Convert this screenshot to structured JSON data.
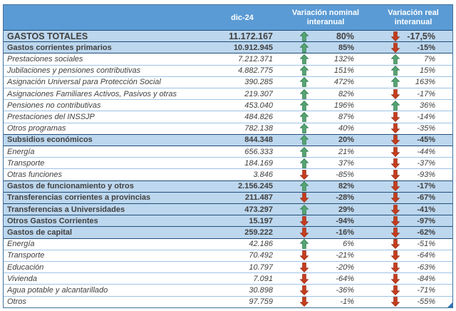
{
  "header": {
    "date_label": "dic-24",
    "nominal_label": "Variación nominal interanual",
    "real_label": "Variación real interanual"
  },
  "rows": [
    {
      "label": "GASTOS TOTALES",
      "value": "11.172.167",
      "nominal": "80%",
      "nominal_dir": "up",
      "real": "-17,5%",
      "real_dir": "down",
      "style": "total"
    },
    {
      "label": "Gastos corrientes primarios",
      "value": "10.912.945",
      "nominal": "85%",
      "nominal_dir": "up",
      "real": "-15%",
      "real_dir": "down",
      "style": "section"
    },
    {
      "label": "Prestaciones sociales",
      "value": "7.212.371",
      "nominal": "132%",
      "nominal_dir": "up",
      "real": "7%",
      "real_dir": "up",
      "style": "item"
    },
    {
      "label": "Jubilaciones y pensiones contributivas",
      "value": "4.882.775",
      "nominal": "151%",
      "nominal_dir": "up",
      "real": "15%",
      "real_dir": "up",
      "style": "item"
    },
    {
      "label": "Asignación Universal para Protección Social",
      "value": "390.285",
      "nominal": "472%",
      "nominal_dir": "up",
      "real": "163%",
      "real_dir": "up",
      "style": "item"
    },
    {
      "label": "Asignaciones Familiares Activos, Pasivos y otras",
      "value": "219.307",
      "nominal": "82%",
      "nominal_dir": "up",
      "real": "-17%",
      "real_dir": "down",
      "style": "item"
    },
    {
      "label": "Pensiones no contributivas",
      "value": "453.040",
      "nominal": "196%",
      "nominal_dir": "up",
      "real": "36%",
      "real_dir": "up",
      "style": "item"
    },
    {
      "label": "Prestaciones del INSSJP",
      "value": "484.826",
      "nominal": "87%",
      "nominal_dir": "up",
      "real": "-14%",
      "real_dir": "down",
      "style": "item"
    },
    {
      "label": "Otros programas",
      "value": "782.138",
      "nominal": "40%",
      "nominal_dir": "up",
      "real": "-35%",
      "real_dir": "down",
      "style": "item"
    },
    {
      "label": "Subsidios económicos",
      "value": "844.348",
      "nominal": "20%",
      "nominal_dir": "up",
      "real": "-45%",
      "real_dir": "down",
      "style": "section"
    },
    {
      "label": "Energía",
      "value": "656.333",
      "nominal": "21%",
      "nominal_dir": "up",
      "real": "-44%",
      "real_dir": "down",
      "style": "item"
    },
    {
      "label": "Transporte",
      "value": "184.169",
      "nominal": "37%",
      "nominal_dir": "up",
      "real": "-37%",
      "real_dir": "down",
      "style": "item"
    },
    {
      "label": "Otras funciones",
      "value": "3.846",
      "nominal": "-85%",
      "nominal_dir": "down",
      "real": "-93%",
      "real_dir": "down",
      "style": "item"
    },
    {
      "label": "Gastos de funcionamiento y otros",
      "value": "2.156.245",
      "nominal": "82%",
      "nominal_dir": "up",
      "real": "-17%",
      "real_dir": "down",
      "style": "section"
    },
    {
      "label": "Transferencias corrientes a provincias",
      "value": "211.487",
      "nominal": "-28%",
      "nominal_dir": "down",
      "real": "-67%",
      "real_dir": "down",
      "style": "section"
    },
    {
      "label": "Transferencias a Universidades",
      "value": "473.297",
      "nominal": "29%",
      "nominal_dir": "up",
      "real": "-41%",
      "real_dir": "down",
      "style": "section"
    },
    {
      "label": "Otros Gastos Corrientes",
      "value": "15.197",
      "nominal": "-94%",
      "nominal_dir": "down",
      "real": "-97%",
      "real_dir": "down",
      "style": "section"
    },
    {
      "label": "Gastos de capital",
      "value": "259.222",
      "nominal": "-16%",
      "nominal_dir": "down",
      "real": "-62%",
      "real_dir": "down",
      "style": "section"
    },
    {
      "label": "Energía",
      "value": "42.186",
      "nominal": "6%",
      "nominal_dir": "up",
      "real": "-51%",
      "real_dir": "down",
      "style": "item"
    },
    {
      "label": "Transporte",
      "value": "70.492",
      "nominal": "-21%",
      "nominal_dir": "down",
      "real": "-64%",
      "real_dir": "down",
      "style": "item"
    },
    {
      "label": "Educación",
      "value": "10.797",
      "nominal": "-20%",
      "nominal_dir": "down",
      "real": "-63%",
      "real_dir": "down",
      "style": "item"
    },
    {
      "label": "Vivienda",
      "value": "7.091",
      "nominal": "-64%",
      "nominal_dir": "down",
      "real": "-84%",
      "real_dir": "down",
      "style": "item"
    },
    {
      "label": "Agua potable y alcantarillado",
      "value": "30.898",
      "nominal": "-36%",
      "nominal_dir": "down",
      "real": "-71%",
      "real_dir": "down",
      "style": "item"
    },
    {
      "label": "Otros",
      "value": "97.759",
      "nominal": "-1%",
      "nominal_dir": "down",
      "real": "-55%",
      "real_dir": "down",
      "style": "item"
    }
  ],
  "icons": {
    "up": "up-arrow-icon",
    "down": "down-arrow-icon"
  },
  "colors": {
    "header_bg": "#5B9BD5",
    "band_bg": "#BDD7EE",
    "row_bg": "#FFFFFF",
    "text": "#404040",
    "header_text": "#FFFFFF",
    "up_arrow": "#57A373",
    "up_arrow_outline": "#2E7D4F",
    "down_arrow": "#C63D1D",
    "down_arrow_outline": "#96301A",
    "border_dark": "#1F4E79",
    "border_light": "#9DC3E6",
    "outer_border": "#41719C"
  }
}
